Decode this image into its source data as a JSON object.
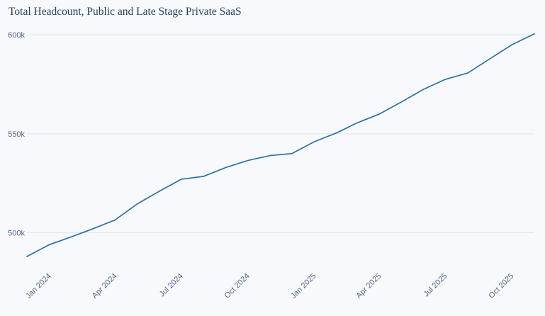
{
  "chart_data": {
    "type": "line",
    "title": "Total Headcount, Public and Late Stage Private SaaS",
    "xlabel": "",
    "ylabel": "",
    "series_color": "#2f6fa8",
    "grid": true,
    "legend": "none",
    "ylim": [
      483000,
      604000
    ],
    "xlim": [
      "2023-12-01",
      "2025-11-01"
    ],
    "y_ticks": [
      {
        "value": 500000,
        "label": "500k"
      },
      {
        "value": 550000,
        "label": "550k"
      },
      {
        "value": 600000,
        "label": "600k"
      }
    ],
    "x_ticks": [
      {
        "value": "2024-01-01",
        "label": "Jan 2024"
      },
      {
        "value": "2024-04-01",
        "label": "Apr 2024"
      },
      {
        "value": "2024-07-01",
        "label": "Jul 2024"
      },
      {
        "value": "2024-10-01",
        "label": "Oct 2024"
      },
      {
        "value": "2025-01-01",
        "label": "Jan 2025"
      },
      {
        "value": "2025-04-01",
        "label": "Apr 2025"
      },
      {
        "value": "2025-07-01",
        "label": "Jul 2025"
      },
      {
        "value": "2025-10-01",
        "label": "Oct 2025"
      }
    ],
    "x": [
      "2023-12-01",
      "2024-01-01",
      "2024-02-01",
      "2024-03-01",
      "2024-04-01",
      "2024-05-01",
      "2024-06-01",
      "2024-07-01",
      "2024-08-01",
      "2024-09-01",
      "2024-10-01",
      "2024-11-01",
      "2024-12-01",
      "2025-01-01",
      "2025-02-01",
      "2025-03-01",
      "2025-04-01",
      "2025-05-01",
      "2025-06-01",
      "2025-07-01",
      "2025-08-01",
      "2025-09-01",
      "2025-10-01",
      "2025-11-01"
    ],
    "values": [
      488000,
      494000,
      498000,
      502000,
      506500,
      514500,
      521000,
      527000,
      528500,
      533000,
      536500,
      539000,
      540000,
      546000,
      550500,
      555500,
      560000,
      566000,
      572500,
      577500,
      580700,
      588000,
      595000,
      600500
    ]
  }
}
